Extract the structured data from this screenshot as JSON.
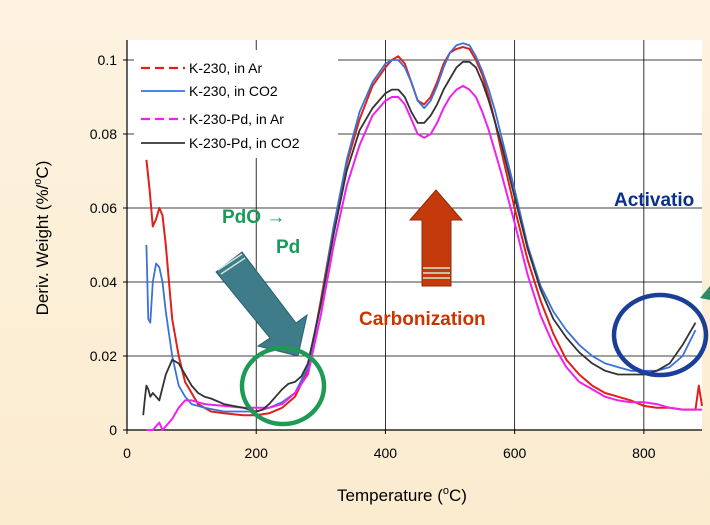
{
  "chart_data": {
    "type": "line",
    "xlabel": "Temperature (",
    "xlabel_sup": "o",
    "xlabel_tail": "C)",
    "ylabel": "Deriv. Weight (%/",
    "ylabel_sup": "o",
    "ylabel_tail": "C)",
    "xlim": [
      0,
      900
    ],
    "ylim": [
      0,
      0.105
    ],
    "x_ticks": [
      "0",
      "200",
      "400",
      "600",
      "800"
    ],
    "x_tick_values": [
      0,
      200,
      400,
      600,
      800
    ],
    "y_ticks": [
      "0",
      "0.02",
      "0.04",
      "0.06",
      "0.08",
      "0.1"
    ],
    "y_tick_values": [
      0,
      0.02,
      0.04,
      0.06,
      0.08,
      0.1
    ],
    "grid": true,
    "legend_position": "top-left",
    "series": [
      {
        "name": "K-230, in Ar",
        "color": "#e0201b",
        "dash": "dashed",
        "x": [
          30,
          35,
          40,
          45,
          50,
          55,
          60,
          65,
          70,
          80,
          90,
          100,
          110,
          120,
          130,
          150,
          180,
          200,
          220,
          240,
          260,
          280,
          300,
          320,
          340,
          360,
          380,
          400,
          410,
          420,
          430,
          440,
          450,
          460,
          470,
          480,
          490,
          500,
          510,
          520,
          530,
          540,
          550,
          560,
          570,
          580,
          600,
          620,
          640,
          660,
          680,
          700,
          720,
          740,
          760,
          780,
          800,
          820,
          840,
          860,
          880,
          885,
          890
        ],
        "y": [
          0.073,
          0.065,
          0.055,
          0.057,
          0.06,
          0.058,
          0.05,
          0.04,
          0.03,
          0.02,
          0.013,
          0.01,
          0.007,
          0.006,
          0.005,
          0.0045,
          0.004,
          0.004,
          0.0045,
          0.006,
          0.009,
          0.016,
          0.035,
          0.055,
          0.072,
          0.084,
          0.093,
          0.098,
          0.1,
          0.101,
          0.099,
          0.094,
          0.089,
          0.088,
          0.09,
          0.094,
          0.099,
          0.102,
          0.103,
          0.1035,
          0.103,
          0.1,
          0.096,
          0.09,
          0.083,
          0.075,
          0.06,
          0.046,
          0.035,
          0.026,
          0.019,
          0.015,
          0.012,
          0.01,
          0.009,
          0.008,
          0.0065,
          0.006,
          0.006,
          0.0055,
          0.0055,
          0.012,
          0.0065
        ]
      },
      {
        "name": "K-230, in CO2",
        "color": "#3a72d8",
        "dash": "solid",
        "x": [
          30,
          33,
          36,
          40,
          45,
          50,
          55,
          60,
          70,
          80,
          90,
          100,
          120,
          150,
          180,
          200,
          220,
          240,
          260,
          280,
          300,
          320,
          340,
          360,
          380,
          400,
          410,
          420,
          430,
          440,
          450,
          460,
          470,
          480,
          490,
          500,
          510,
          520,
          530,
          540,
          550,
          560,
          570,
          580,
          600,
          620,
          640,
          660,
          680,
          700,
          720,
          740,
          760,
          780,
          800,
          820,
          840,
          860,
          880
        ],
        "y": [
          0.05,
          0.03,
          0.029,
          0.04,
          0.045,
          0.044,
          0.04,
          0.032,
          0.02,
          0.012,
          0.009,
          0.007,
          0.006,
          0.005,
          0.005,
          0.005,
          0.006,
          0.0075,
          0.01,
          0.017,
          0.034,
          0.055,
          0.073,
          0.086,
          0.094,
          0.099,
          0.1,
          0.1,
          0.098,
          0.094,
          0.089,
          0.087,
          0.089,
          0.093,
          0.098,
          0.102,
          0.104,
          0.1045,
          0.104,
          0.101,
          0.097,
          0.092,
          0.086,
          0.079,
          0.065,
          0.05,
          0.039,
          0.032,
          0.027,
          0.023,
          0.02,
          0.018,
          0.017,
          0.016,
          0.016,
          0.016,
          0.017,
          0.02,
          0.027
        ]
      },
      {
        "name": "K-230-Pd, in Ar",
        "color": "#ee22ee",
        "dash": "dashed",
        "x": [
          30,
          40,
          45,
          50,
          55,
          60,
          70,
          80,
          90,
          100,
          120,
          150,
          180,
          200,
          220,
          240,
          260,
          280,
          300,
          320,
          340,
          360,
          380,
          400,
          410,
          420,
          430,
          440,
          450,
          460,
          470,
          480,
          490,
          500,
          510,
          520,
          530,
          540,
          550,
          560,
          570,
          580,
          600,
          620,
          640,
          660,
          680,
          700,
          720,
          740,
          760,
          780,
          800,
          820,
          840,
          860,
          880,
          890
        ],
        "y": [
          0.0,
          0.0,
          0.001,
          0.002,
          0.0,
          0.001,
          0.003,
          0.006,
          0.008,
          0.008,
          0.007,
          0.0065,
          0.006,
          0.006,
          0.006,
          0.007,
          0.01,
          0.015,
          0.031,
          0.05,
          0.066,
          0.077,
          0.085,
          0.089,
          0.09,
          0.09,
          0.088,
          0.084,
          0.08,
          0.079,
          0.08,
          0.083,
          0.087,
          0.09,
          0.092,
          0.093,
          0.092,
          0.09,
          0.086,
          0.081,
          0.075,
          0.069,
          0.056,
          0.042,
          0.031,
          0.023,
          0.017,
          0.013,
          0.011,
          0.009,
          0.008,
          0.0075,
          0.0075,
          0.007,
          0.006,
          0.0055,
          0.0055,
          0.0055
        ]
      },
      {
        "name": "K-230-Pd, in CO2",
        "color": "#333333",
        "dash": "solid",
        "x": [
          25,
          28,
          30,
          33,
          36,
          40,
          45,
          50,
          60,
          70,
          80,
          90,
          100,
          110,
          120,
          130,
          150,
          180,
          200,
          210,
          220,
          230,
          240,
          250,
          260,
          270,
          280,
          300,
          320,
          340,
          360,
          380,
          400,
          410,
          420,
          430,
          440,
          450,
          460,
          470,
          480,
          490,
          500,
          510,
          520,
          530,
          540,
          550,
          560,
          570,
          580,
          600,
          620,
          640,
          660,
          680,
          700,
          720,
          740,
          760,
          780,
          800,
          820,
          840,
          860,
          880
        ],
        "y": [
          0.004,
          0.009,
          0.012,
          0.011,
          0.009,
          0.01,
          0.009,
          0.008,
          0.015,
          0.019,
          0.018,
          0.015,
          0.012,
          0.01,
          0.009,
          0.0085,
          0.007,
          0.006,
          0.005,
          0.0055,
          0.007,
          0.009,
          0.011,
          0.0125,
          0.013,
          0.0145,
          0.018,
          0.034,
          0.053,
          0.07,
          0.081,
          0.087,
          0.091,
          0.092,
          0.092,
          0.09,
          0.086,
          0.083,
          0.083,
          0.085,
          0.088,
          0.092,
          0.095,
          0.098,
          0.0995,
          0.0995,
          0.098,
          0.094,
          0.089,
          0.083,
          0.077,
          0.063,
          0.049,
          0.038,
          0.03,
          0.025,
          0.021,
          0.018,
          0.016,
          0.015,
          0.015,
          0.015,
          0.016,
          0.018,
          0.023,
          0.029
        ]
      }
    ],
    "annotations": {
      "pdo_line1": "PdO →",
      "pdo_line2": "Pd",
      "carbonization": "Carbonization",
      "activation": "Activatio"
    }
  }
}
